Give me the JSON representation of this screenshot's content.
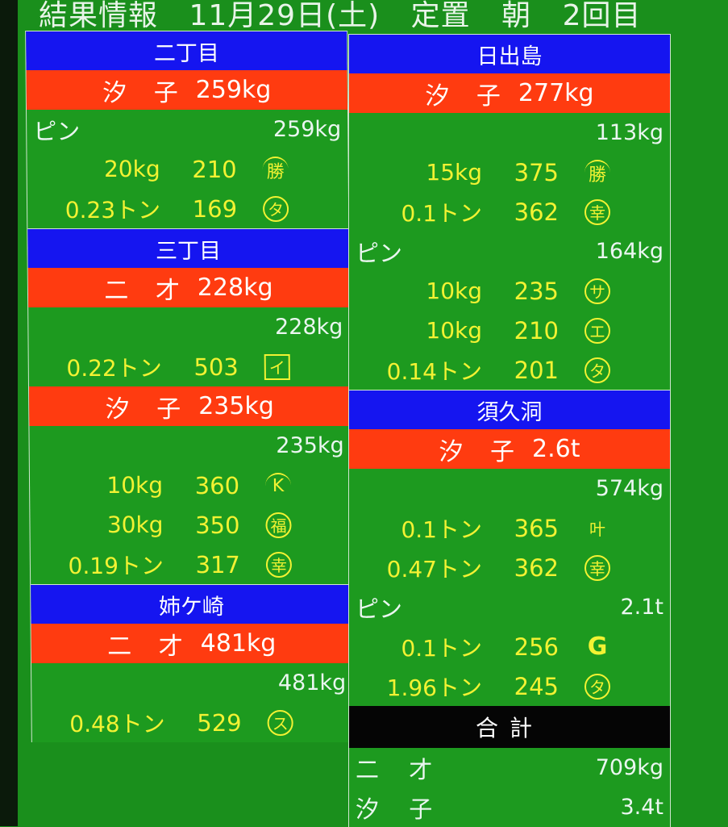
{
  "title": {
    "label": "結果情報",
    "date": "11月29日(土)",
    "type": "定置",
    "session": "朝",
    "round": "2回目"
  },
  "colors": {
    "background": "#1d9a1f",
    "port_header": "#1515f0",
    "species_header": "#ff3b10",
    "total_header": "#050505",
    "entry_text": "#f2f233"
  },
  "columns": [
    {
      "sections": [
        {
          "port": "二丁目",
          "groups": [
            {
              "species": "汐 子",
              "total": "259kg",
              "rows": [
                {
                  "type": "sub",
                  "label": "ピン",
                  "weight": "259kg"
                },
                {
                  "type": "ent",
                  "qty": "20kg",
                  "price": "210",
                  "mark": "勝",
                  "mark_style": "roof"
                },
                {
                  "type": "ent",
                  "qty": "0.23トン",
                  "price": "169",
                  "mark": "タ",
                  "mark_style": "circle"
                }
              ]
            }
          ]
        },
        {
          "port": "三丁目",
          "groups": [
            {
              "species": "二 才",
              "total": "228kg",
              "rows": [
                {
                  "type": "sub",
                  "label": "",
                  "weight": "228kg"
                },
                {
                  "type": "ent",
                  "qty": "0.22トン",
                  "price": "503",
                  "mark": "イ",
                  "mark_style": "box"
                }
              ]
            },
            {
              "species": "汐 子",
              "total": "235kg",
              "rows": [
                {
                  "type": "sub",
                  "label": "",
                  "weight": "235kg"
                },
                {
                  "type": "ent",
                  "qty": "10kg",
                  "price": "360",
                  "mark": "K",
                  "mark_style": "roof"
                },
                {
                  "type": "ent",
                  "qty": "30kg",
                  "price": "350",
                  "mark": "福",
                  "mark_style": "circle"
                },
                {
                  "type": "ent",
                  "qty": "0.19トン",
                  "price": "317",
                  "mark": "幸",
                  "mark_style": "circle"
                }
              ]
            }
          ]
        },
        {
          "port": "姉ケ崎",
          "groups": [
            {
              "species": "二 才",
              "total": "481kg",
              "rows": [
                {
                  "type": "sub",
                  "label": "",
                  "weight": "481kg"
                },
                {
                  "type": "ent",
                  "qty": "0.48トン",
                  "price": "529",
                  "mark": "ス",
                  "mark_style": "circle"
                }
              ]
            }
          ]
        }
      ]
    },
    {
      "sections": [
        {
          "port": "日出島",
          "groups": [
            {
              "species": "汐 子",
              "total": "277kg",
              "rows": [
                {
                  "type": "sub",
                  "label": "",
                  "weight": "113kg"
                },
                {
                  "type": "ent",
                  "qty": "15kg",
                  "price": "375",
                  "mark": "勝",
                  "mark_style": "roof"
                },
                {
                  "type": "ent",
                  "qty": "0.1トン",
                  "price": "362",
                  "mark": "幸",
                  "mark_style": "circle"
                },
                {
                  "type": "sub",
                  "label": "ピン",
                  "weight": "164kg"
                },
                {
                  "type": "ent",
                  "qty": "10kg",
                  "price": "235",
                  "mark": "サ",
                  "mark_style": "circle"
                },
                {
                  "type": "ent",
                  "qty": "10kg",
                  "price": "210",
                  "mark": "エ",
                  "mark_style": "circle"
                },
                {
                  "type": "ent",
                  "qty": "0.14トン",
                  "price": "201",
                  "mark": "タ",
                  "mark_style": "circle"
                }
              ]
            }
          ]
        },
        {
          "port": "須久洞",
          "groups": [
            {
              "species": "汐 子",
              "total": "2.6t",
              "rows": [
                {
                  "type": "sub",
                  "label": "",
                  "weight": "574kg"
                },
                {
                  "type": "ent",
                  "qty": "0.1トン",
                  "price": "365",
                  "mark": "叶",
                  "mark_style": "plain"
                },
                {
                  "type": "ent",
                  "qty": "0.47トン",
                  "price": "362",
                  "mark": "幸",
                  "mark_style": "circle"
                },
                {
                  "type": "sub",
                  "label": "ピン",
                  "weight": "2.1t"
                },
                {
                  "type": "ent",
                  "qty": "0.1トン",
                  "price": "256",
                  "mark": "G",
                  "mark_style": "bold"
                },
                {
                  "type": "ent",
                  "qty": "1.96トン",
                  "price": "245",
                  "mark": "タ",
                  "mark_style": "circle"
                }
              ]
            }
          ]
        }
      ],
      "totals": {
        "label": "合計",
        "rows": [
          {
            "label": "二 才",
            "weight": "709kg"
          },
          {
            "label": "汐 子",
            "weight": "3.4t"
          }
        ]
      }
    }
  ]
}
